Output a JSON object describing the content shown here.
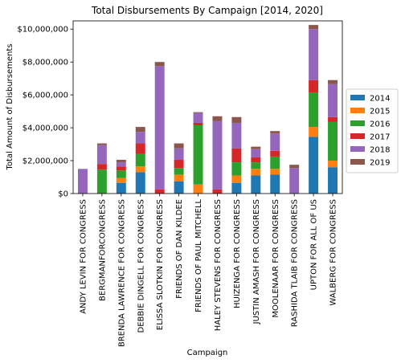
{
  "chart_data": {
    "type": "bar",
    "stacked": true,
    "title": "Total Disbursements By Campaign [2014, 2020]",
    "xlabel": "Campaign",
    "ylabel": "Total Amount of Disbursements",
    "ylim": [
      0,
      10500000
    ],
    "yticks": [
      0,
      2000000,
      4000000,
      6000000,
      8000000,
      10000000
    ],
    "ytick_labels": [
      "$0",
      "$2,000,000",
      "$4,000,000",
      "$6,000,000",
      "$8,000,000",
      "$10,000,000"
    ],
    "grid": false,
    "legend_position": "right",
    "categories": [
      "ANDY LEVIN FOR CONGRESS",
      "BERGMANFORCONGRESS",
      "BRENDA LAWRENCE FOR CONGRESS",
      "DEBBIE DINGELL FOR CONGRESS",
      "ELISSA SLOTKIN FOR CONGRESS",
      "FRIENDS OF DAN KILDEE",
      "FRIENDS OF PAUL MITCHELL",
      "HALEY STEVENS FOR CONGRESS",
      "HUIZENGA FOR CONGRESS",
      "JUSTIN AMASH FOR CONGRESS",
      "MOOLENAAR FOR CONGRESS",
      "RASHIDA TLAIB FOR CONGRESS",
      "UPTON FOR ALL OF US",
      "WALBERG FOR CONGRESS"
    ],
    "series": [
      {
        "name": "2014",
        "color": "#1f77b4",
        "values": [
          0,
          0,
          650000,
          1300000,
          0,
          750000,
          0,
          0,
          650000,
          1100000,
          1150000,
          0,
          3450000,
          1600000
        ]
      },
      {
        "name": "2015",
        "color": "#ff7f0e",
        "values": [
          0,
          0,
          300000,
          350000,
          0,
          400000,
          550000,
          0,
          450000,
          400000,
          350000,
          0,
          600000,
          400000
        ]
      },
      {
        "name": "2016",
        "color": "#2ca02c",
        "values": [
          0,
          1450000,
          450000,
          750000,
          0,
          400000,
          3600000,
          0,
          800000,
          400000,
          750000,
          0,
          2100000,
          2350000
        ]
      },
      {
        "name": "2017",
        "color": "#d62728",
        "values": [
          0,
          350000,
          250000,
          650000,
          250000,
          500000,
          150000,
          250000,
          850000,
          300000,
          350000,
          0,
          750000,
          300000
        ]
      },
      {
        "name": "2018",
        "color": "#9467bd",
        "values": [
          1500000,
          1150000,
          250000,
          700000,
          7500000,
          700000,
          600000,
          4150000,
          1550000,
          500000,
          1050000,
          1550000,
          3100000,
          2000000
        ]
      },
      {
        "name": "2019",
        "color": "#8c564b",
        "values": [
          0,
          100000,
          150000,
          300000,
          250000,
          300000,
          50000,
          300000,
          350000,
          150000,
          150000,
          200000,
          250000,
          250000
        ]
      }
    ]
  }
}
